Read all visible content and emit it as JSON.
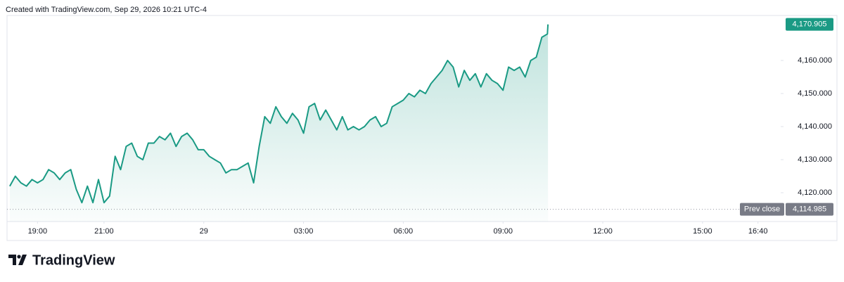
{
  "header": "Created with TradingView.com, Sep 29, 2026 10:21 UTC-4",
  "footer": "TradingView",
  "chart_data": {
    "type": "area",
    "x": [
      "18:10",
      "18:20",
      "18:30",
      "18:40",
      "18:50",
      "19:00",
      "19:10",
      "19:20",
      "19:30",
      "19:40",
      "19:50",
      "20:00",
      "20:10",
      "20:20",
      "20:30",
      "20:40",
      "20:50",
      "21:00",
      "21:10",
      "21:20",
      "21:30",
      "21:40",
      "21:50",
      "22:00",
      "22:10",
      "22:20",
      "22:30",
      "22:40",
      "22:50",
      "23:00",
      "23:10",
      "23:20",
      "23:30",
      "23:40",
      "23:50",
      "00:00",
      "00:10",
      "00:20",
      "00:30",
      "00:40",
      "00:50",
      "01:00",
      "01:10",
      "01:20",
      "01:30",
      "01:40",
      "01:50",
      "02:00",
      "02:10",
      "02:20",
      "02:30",
      "02:40",
      "02:50",
      "03:00",
      "03:10",
      "03:20",
      "03:30",
      "03:40",
      "03:50",
      "04:00",
      "04:10",
      "04:20",
      "04:30",
      "04:40",
      "04:50",
      "05:00",
      "05:10",
      "05:20",
      "05:30",
      "05:40",
      "05:50",
      "06:00",
      "06:10",
      "06:20",
      "06:30",
      "06:40",
      "06:50",
      "07:00",
      "07:10",
      "07:20",
      "07:30",
      "07:40",
      "07:50",
      "08:00",
      "08:10",
      "08:20",
      "08:30",
      "08:40",
      "08:50",
      "09:00",
      "09:10",
      "09:20",
      "09:30",
      "09:40",
      "09:50",
      "10:00",
      "10:10",
      "10:20",
      "10:21"
    ],
    "series": [
      {
        "color": "#1a9a84",
        "values": [
          4122,
          4125,
          4123,
          4122,
          4124,
          4123,
          4124,
          4127,
          4126,
          4124,
          4126,
          4127,
          4121,
          4117,
          4122,
          4117,
          4124,
          4117,
          4119,
          4131,
          4127,
          4134,
          4135,
          4131,
          4130,
          4135,
          4135,
          4137,
          4136,
          4138,
          4134,
          4137,
          4138,
          4136,
          4133,
          4133,
          4131,
          4130,
          4129,
          4126,
          4127,
          4127,
          4128,
          4129,
          4123,
          4134,
          4143,
          4141,
          4146,
          4143,
          4141,
          4144,
          4142,
          4138,
          4146,
          4147,
          4142,
          4145,
          4142,
          4139,
          4143,
          4139,
          4140,
          4139,
          4140,
          4142,
          4143,
          4140,
          4141,
          4146,
          4147,
          4148,
          4150,
          4149,
          4151,
          4150,
          4153,
          4155,
          4157,
          4160,
          4158,
          4152,
          4157,
          4154,
          4156,
          4152,
          4156,
          4154,
          4153,
          4151,
          4158,
          4157,
          4158,
          4155,
          4160,
          4161,
          4167,
          4168,
          4170.905
        ],
        "last_value_label": "4,170.905"
      }
    ],
    "prev_close": {
      "name": "Prev close",
      "value": 4114.985,
      "label": "4,114.985"
    },
    "xlim": [
      "18:05",
      "17:21"
    ],
    "xticks": [
      "19:00",
      "21:00",
      {
        "value": "00:00",
        "label": "29"
      },
      "03:00",
      "06:00",
      "09:00",
      "12:00",
      "15:00",
      "16:40"
    ],
    "ylim": [
      4111.3,
      4173.6
    ],
    "yticks": [
      {
        "value": 4120,
        "label": "4,120.000"
      },
      {
        "value": 4130,
        "label": "4,130.000"
      },
      {
        "value": 4140,
        "label": "4,140.000"
      },
      {
        "value": 4150,
        "label": "4,150.000"
      },
      {
        "value": 4160,
        "label": "4,160.000"
      }
    ]
  }
}
